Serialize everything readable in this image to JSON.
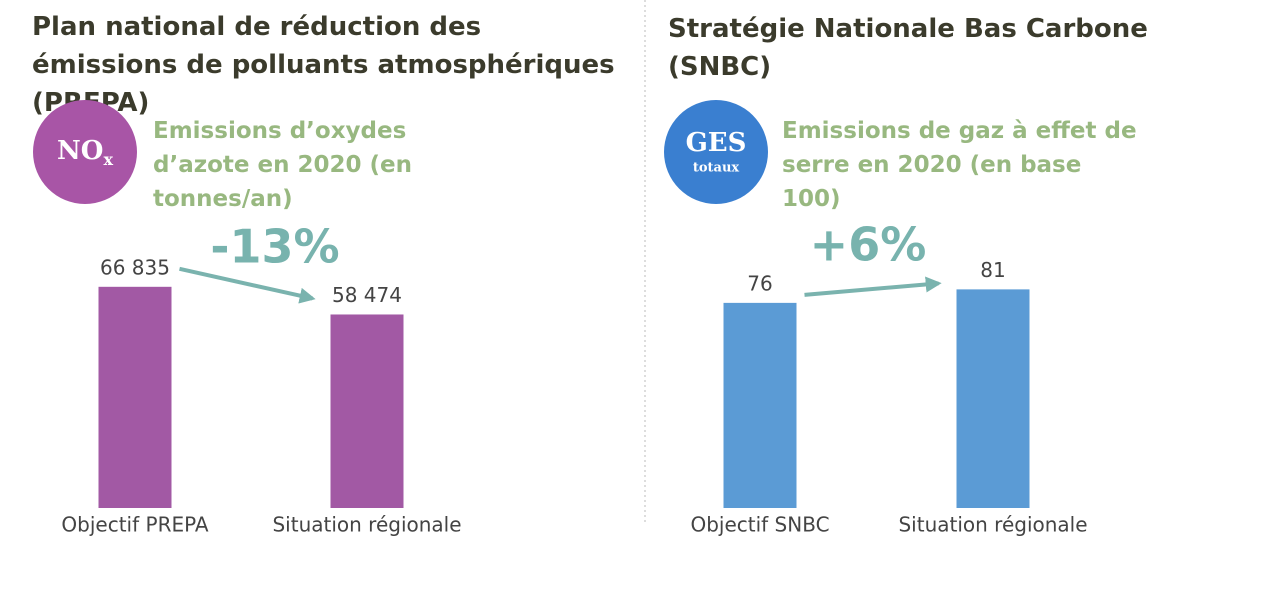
{
  "chart_data": [
    {
      "type": "bar",
      "title": "Plan national de réduction des émissions de polluants atmosphériques (PREPA)",
      "icon": {
        "label": "NO",
        "sub": "x"
      },
      "subtitle": "Emissions d’oxydes d’azote en 2020 (en tonnes/an)",
      "annotation": "-13%",
      "categories": [
        "Objectif PREPA",
        "Situation régionale"
      ],
      "values": [
        66835,
        58474
      ],
      "value_labels": [
        "66 835",
        "58 474"
      ],
      "color": "#a259a4",
      "icon_color": "#a855a6",
      "ylim": [
        0,
        84000
      ]
    },
    {
      "type": "bar",
      "title": "Stratégie Nationale Bas Carbone (SNBC)",
      "icon": {
        "label": "GES",
        "sub": "totaux"
      },
      "subtitle": "Emissions de gaz à effet de serre en 2020 (en base 100)",
      "annotation": "+6%",
      "categories": [
        "Objectif SNBC",
        "Situation régionale"
      ],
      "values": [
        76,
        81
      ],
      "color": "#5b9bd5",
      "icon_color": "#3a7fd0",
      "ylim": [
        0,
        103
      ]
    }
  ]
}
